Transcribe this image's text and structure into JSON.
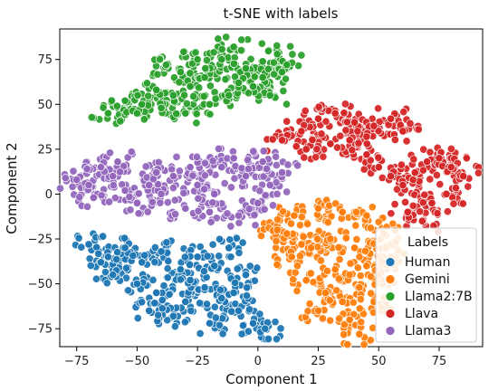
{
  "chart_data": {
    "type": "scatter",
    "title": "t-SNE with labels",
    "xlabel": "Component 1",
    "ylabel": "Component 2",
    "xlim": [
      -82,
      93
    ],
    "ylim": [
      -85,
      92
    ],
    "xticks": [
      -75,
      -50,
      -25,
      0,
      25,
      50,
      75
    ],
    "yticks": [
      -75,
      -50,
      -25,
      0,
      25,
      50,
      75
    ],
    "grid": false,
    "legend": {
      "title": "Labels",
      "placement": "lower-right"
    },
    "series": [
      {
        "name": "Human",
        "color": "#1f77b4",
        "cluster": {
          "x_range": [
            -72,
            7
          ],
          "y_range": [
            -78,
            -23
          ]
        },
        "points": [
          [
            -70,
            -28
          ],
          [
            -62,
            -35
          ],
          [
            -55,
            -30
          ],
          [
            -48,
            -38
          ],
          [
            -40,
            -32
          ],
          [
            -32,
            -42
          ],
          [
            -25,
            -35
          ],
          [
            -18,
            -40
          ],
          [
            -12,
            -30
          ],
          [
            -5,
            -45
          ],
          [
            -50,
            -50
          ],
          [
            -42,
            -55
          ],
          [
            -30,
            -60
          ],
          [
            -22,
            -52
          ],
          [
            -15,
            -58
          ],
          [
            -8,
            -65
          ],
          [
            -2,
            -72
          ],
          [
            3,
            -75
          ],
          [
            -35,
            -68
          ],
          [
            -45,
            -65
          ],
          [
            -60,
            -45
          ],
          [
            -65,
            -38
          ],
          [
            -28,
            -48
          ],
          [
            -10,
            -55
          ],
          [
            -20,
            -72
          ]
        ]
      },
      {
        "name": "Gemini",
        "color": "#ff7f0e",
        "cluster": {
          "x_range": [
            5,
            57
          ],
          "y_range": [
            -80,
            -5
          ]
        },
        "points": [
          [
            8,
            -20
          ],
          [
            15,
            -12
          ],
          [
            25,
            -8
          ],
          [
            35,
            -10
          ],
          [
            45,
            -12
          ],
          [
            52,
            -22
          ],
          [
            55,
            -35
          ],
          [
            50,
            -45
          ],
          [
            42,
            -52
          ],
          [
            35,
            -60
          ],
          [
            28,
            -55
          ],
          [
            20,
            -48
          ],
          [
            14,
            -35
          ],
          [
            22,
            -30
          ],
          [
            30,
            -25
          ],
          [
            40,
            -30
          ],
          [
            45,
            -40
          ],
          [
            32,
            -42
          ],
          [
            38,
            -70
          ],
          [
            42,
            -78
          ],
          [
            25,
            -65
          ],
          [
            18,
            -28
          ],
          [
            12,
            -22
          ],
          [
            48,
            -60
          ],
          [
            53,
            -30
          ]
        ]
      },
      {
        "name": "Llama2:7B",
        "color": "#2ca02c",
        "cluster": {
          "x_range": [
            -65,
            15
          ],
          "y_range": [
            40,
            88
          ]
        },
        "points": [
          [
            -62,
            45
          ],
          [
            -55,
            52
          ],
          [
            -48,
            50
          ],
          [
            -42,
            58
          ],
          [
            -38,
            72
          ],
          [
            -32,
            68
          ],
          [
            -28,
            60
          ],
          [
            -22,
            65
          ],
          [
            -15,
            75
          ],
          [
            -10,
            82
          ],
          [
            -5,
            70
          ],
          [
            2,
            65
          ],
          [
            8,
            78
          ],
          [
            12,
            72
          ],
          [
            -40,
            48
          ],
          [
            -30,
            45
          ],
          [
            -20,
            50
          ],
          [
            -12,
            55
          ],
          [
            -2,
            60
          ],
          [
            5,
            55
          ],
          [
            -50,
            45
          ],
          [
            -35,
            55
          ],
          [
            -25,
            75
          ],
          [
            -8,
            62
          ],
          [
            10,
            68
          ]
        ]
      },
      {
        "name": "Llava",
        "color": "#d62728",
        "cluster": {
          "x_range": [
            8,
            88
          ],
          "y_range": [
            -20,
            50
          ]
        },
        "points": [
          [
            10,
            30
          ],
          [
            18,
            35
          ],
          [
            25,
            42
          ],
          [
            32,
            45
          ],
          [
            40,
            40
          ],
          [
            48,
            38
          ],
          [
            55,
            42
          ],
          [
            60,
            35
          ],
          [
            30,
            28
          ],
          [
            38,
            30
          ],
          [
            45,
            22
          ],
          [
            50,
            15
          ],
          [
            55,
            10
          ],
          [
            60,
            5
          ],
          [
            65,
            12
          ],
          [
            70,
            18
          ],
          [
            75,
            20
          ],
          [
            80,
            15
          ],
          [
            85,
            10
          ],
          [
            78,
            0
          ],
          [
            72,
            -5
          ],
          [
            68,
            -15
          ],
          [
            62,
            -10
          ],
          [
            45,
            32
          ],
          [
            20,
            25
          ]
        ]
      },
      {
        "name": "Llama3",
        "color": "#9467bd",
        "cluster": {
          "x_range": [
            -77,
            15
          ],
          "y_range": [
            -15,
            25
          ]
        },
        "points": [
          [
            -75,
            8
          ],
          [
            -70,
            5
          ],
          [
            -65,
            15
          ],
          [
            -60,
            10
          ],
          [
            -55,
            2
          ],
          [
            -50,
            -5
          ],
          [
            -45,
            5
          ],
          [
            -40,
            0
          ],
          [
            -35,
            10
          ],
          [
            -30,
            -8
          ],
          [
            -25,
            5
          ],
          [
            -20,
            -10
          ],
          [
            -15,
            15
          ],
          [
            -10,
            20
          ],
          [
            -5,
            10
          ],
          [
            0,
            -5
          ],
          [
            5,
            5
          ],
          [
            10,
            12
          ],
          [
            -68,
            -2
          ],
          [
            -58,
            18
          ],
          [
            -42,
            12
          ],
          [
            -28,
            15
          ],
          [
            -18,
            0
          ],
          [
            -8,
            -12
          ],
          [
            2,
            18
          ]
        ]
      }
    ]
  }
}
